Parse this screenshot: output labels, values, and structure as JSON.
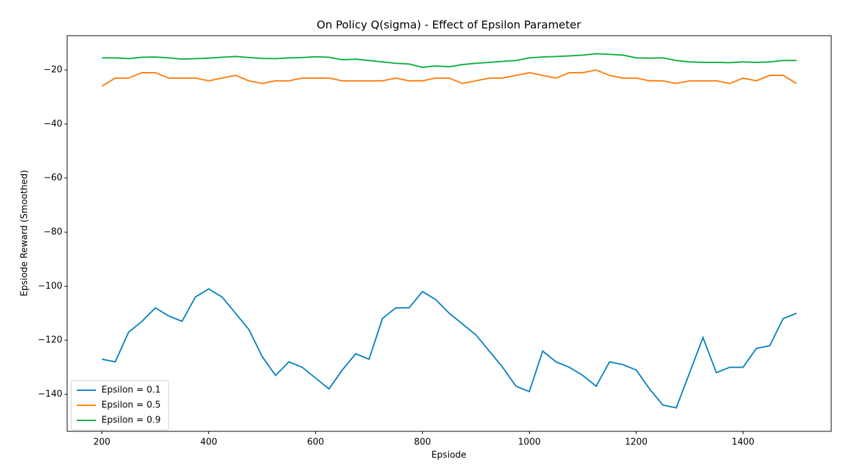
{
  "chart_data": {
    "type": "line",
    "title": "On Policy Q(sigma) - Effect of Epsilon Parameter",
    "x_label": "Epsiode",
    "y_label": "Epsiode Reward (Smoothed)",
    "x": [
      200,
      225,
      250,
      275,
      300,
      325,
      350,
      375,
      400,
      425,
      450,
      475,
      500,
      525,
      550,
      575,
      600,
      625,
      650,
      675,
      700,
      725,
      750,
      775,
      800,
      825,
      850,
      875,
      900,
      925,
      950,
      975,
      1000,
      1025,
      1050,
      1075,
      1100,
      1125,
      1150,
      1175,
      1200,
      1225,
      1250,
      1275,
      1300,
      1325,
      1350,
      1375,
      1400,
      1425,
      1450,
      1475,
      1500
    ],
    "series": [
      {
        "name": "Epsilon = 0.1",
        "color": "#0e85c0",
        "values": [
          -127,
          -128,
          -117,
          -113,
          -108,
          -111,
          -113,
          -104,
          -101,
          -104,
          -110,
          -116,
          -126,
          -133,
          -128,
          -130,
          -134,
          -138,
          -131,
          -125,
          -127,
          -112,
          -108,
          -108,
          -102,
          -105,
          -110,
          -114,
          -118,
          -124,
          -130,
          -137,
          -139,
          -124,
          -128,
          -130,
          -133,
          -137,
          -128,
          -129,
          -131,
          -138,
          -144,
          -145,
          -132,
          -119,
          -132,
          -130,
          -130,
          -123,
          -122,
          -112,
          -110
        ]
      },
      {
        "name": "Epsilon = 0.5",
        "color": "#ff7f0e",
        "values": [
          -26,
          -23,
          -23,
          -21,
          -21,
          -23,
          -23,
          -23,
          -24,
          -23,
          -22,
          -24,
          -25,
          -24,
          -24,
          -23,
          -23,
          -23,
          -24,
          -24,
          -24,
          -24,
          -23,
          -24,
          -24,
          -23,
          -23,
          -25,
          -24,
          -23,
          -23,
          -22,
          -21,
          -22,
          -23,
          -21,
          -21,
          -20,
          -22,
          -23,
          -23,
          -24,
          -24,
          -25,
          -24,
          -24,
          -24,
          -25,
          -23,
          -24,
          -22,
          -22,
          -25
        ]
      },
      {
        "name": "Epsilon = 0.9",
        "color": "#10b040",
        "values": [
          -15.5,
          -15.5,
          -15.8,
          -15.3,
          -15.2,
          -15.5,
          -16,
          -15.8,
          -15.6,
          -15.3,
          -15,
          -15.4,
          -15.7,
          -15.8,
          -15.5,
          -15.4,
          -15.1,
          -15.3,
          -16.2,
          -16,
          -16.5,
          -17,
          -17.5,
          -17.8,
          -19,
          -18.5,
          -18.8,
          -18,
          -17.5,
          -17.2,
          -16.8,
          -16.5,
          -15.5,
          -15.2,
          -15,
          -14.8,
          -14.5,
          -14,
          -14.2,
          -14.5,
          -15.5,
          -15.6,
          -15.5,
          -16.5,
          -17,
          -17.2,
          -17.2,
          -17.3,
          -17,
          -17.2,
          -17,
          -16.5,
          -16.5
        ]
      }
    ],
    "xlim": [
      135,
      1565
    ],
    "ylim": [
      -153.7,
      -7.3
    ],
    "xticks": [
      200,
      400,
      600,
      800,
      1000,
      1200,
      1400
    ],
    "yticks": [
      {
        "value": -140,
        "label": "−140"
      },
      {
        "value": -120,
        "label": "−120"
      },
      {
        "value": -100,
        "label": "−100"
      },
      {
        "value": -80,
        "label": "−80"
      },
      {
        "value": -60,
        "label": "−60"
      },
      {
        "value": -40,
        "label": "−40"
      },
      {
        "value": -20,
        "label": "−20"
      }
    ],
    "legend": "lower left",
    "grid": false
  }
}
